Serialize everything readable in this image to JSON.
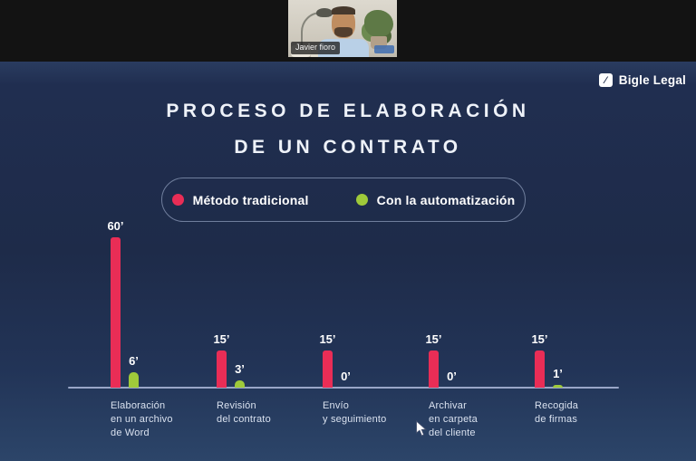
{
  "video": {
    "participant_name": "Javier fioro"
  },
  "brand": {
    "logo_text": "Bigle Legal",
    "logo_glyph": "⁄"
  },
  "slide": {
    "title_line1": "PROCESO DE ELABORACIÓN",
    "title_line2": "DE UN CONTRATO",
    "legend": {
      "items": [
        {
          "label": "Método tradicional",
          "color": "#e92d56"
        },
        {
          "label": "Con la automatización",
          "color": "#9fca3a"
        }
      ]
    }
  },
  "chart_data": {
    "type": "bar",
    "title": "PROCESO DE ELABORACIÓN DE UN CONTRATO",
    "categories": [
      "Elaboración\nen un archivo\nde Word",
      "Revisión\ndel contrato",
      "Envío\ny seguimiento",
      "Archivar\nen carpeta\ndel cliente",
      "Recogida\nde firmas"
    ],
    "series": [
      {
        "name": "Método tradicional",
        "color": "#e92d56",
        "values": [
          60,
          15,
          15,
          15,
          15
        ],
        "value_labels": [
          "60’",
          "15’",
          "15’",
          "15’",
          "15’"
        ]
      },
      {
        "name": "Con la automatización",
        "color": "#9fca3a",
        "values": [
          6,
          3,
          0,
          0,
          1
        ],
        "value_labels": [
          "6’",
          "3’",
          "0’",
          "0’",
          "1’"
        ]
      }
    ],
    "ylim": [
      0,
      60
    ],
    "grid": false,
    "legend_position": "top"
  }
}
